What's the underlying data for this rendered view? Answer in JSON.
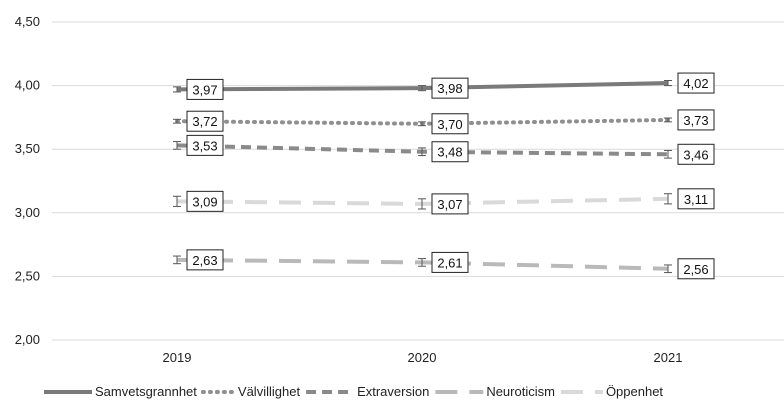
{
  "chart_data": {
    "type": "line",
    "title": "",
    "xlabel": "",
    "ylabel": "",
    "categories": [
      "2019",
      "2020",
      "2021"
    ],
    "ylim": [
      2.0,
      4.5
    ],
    "yticks": [
      "2,00",
      "2,50",
      "3,00",
      "3,50",
      "4,00",
      "4,50"
    ],
    "ytick_values": [
      2.0,
      2.5,
      3.0,
      3.5,
      4.0,
      4.5
    ],
    "grid": true,
    "legend_position": "bottom",
    "error_bars": true,
    "series": [
      {
        "name": "Samvetsgrannhet",
        "values": [
          3.97,
          3.98,
          4.02
        ],
        "labels": [
          "3,97",
          "3,98",
          "4,02"
        ],
        "err": [
          0.02,
          0.02,
          0.02
        ],
        "color": "#7a7a7a",
        "style": "solid"
      },
      {
        "name": "Välvillighet",
        "values": [
          3.72,
          3.7,
          3.73
        ],
        "labels": [
          "3,72",
          "3,70",
          "3,73"
        ],
        "err": [
          0.015,
          0.015,
          0.015
        ],
        "color": "#8f8f8f",
        "style": "dotted"
      },
      {
        "name": "Extraversion",
        "values": [
          3.53,
          3.48,
          3.46
        ],
        "labels": [
          "3,53",
          "3,48",
          "3,46"
        ],
        "err": [
          0.03,
          0.03,
          0.03
        ],
        "color": "#8a8a8a",
        "style": "dashed"
      },
      {
        "name": "Neuroticism",
        "values": [
          2.63,
          2.61,
          2.56
        ],
        "labels": [
          "2,63",
          "2,61",
          "2,56"
        ],
        "err": [
          0.03,
          0.03,
          0.03
        ],
        "color": "#b9b9b9",
        "style": "longdash"
      },
      {
        "name": "Öppenhet",
        "values": [
          3.09,
          3.07,
          3.11
        ],
        "labels": [
          "3,09",
          "3,07",
          "3,11"
        ],
        "err": [
          0.04,
          0.04,
          0.04
        ],
        "color": "#d9d9d9",
        "style": "longdash"
      }
    ]
  }
}
